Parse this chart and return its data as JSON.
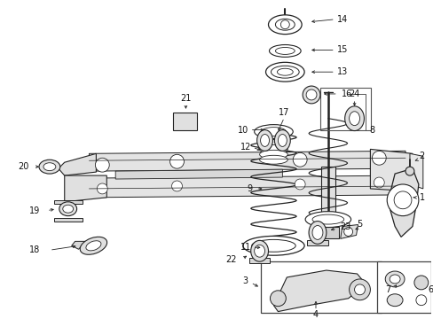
{
  "bg_color": "#ffffff",
  "fig_width": 4.89,
  "fig_height": 3.6,
  "dpi": 100,
  "label_fontsize": 7.0,
  "line_color": "#222222",
  "fill_color": "#e8e8e8"
}
